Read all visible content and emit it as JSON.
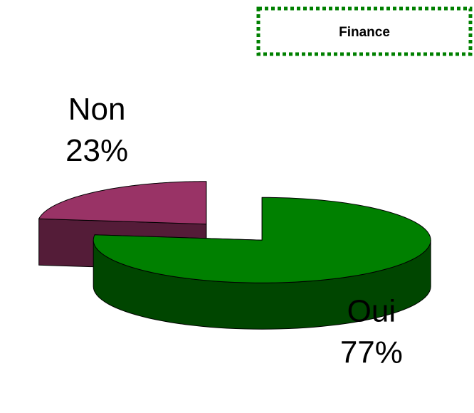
{
  "chart_data": {
    "type": "pie",
    "title": "Finance",
    "categories": [
      "Oui",
      "Non"
    ],
    "values": [
      77,
      23
    ],
    "value_labels": [
      "77%",
      "23%"
    ],
    "colors": [
      "#008000",
      "#993366"
    ]
  }
}
